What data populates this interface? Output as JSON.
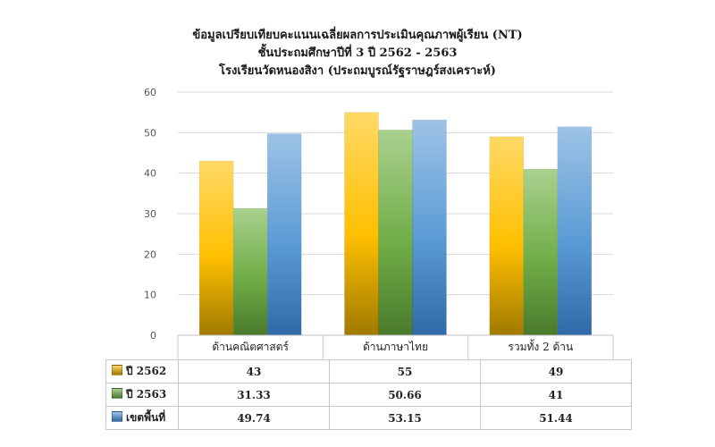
{
  "chart_data": {
    "type": "bar",
    "title": [
      "ข้อมูลเปรียบเทียบคะแนนเฉลี่ยผลการประเมินคุณภาพผู้เรียน (NT)",
      "ชั้นประถมศึกษาปีที่ 3 ปี 2562 - 2563",
      "โรงเรียนวัดหนองสิงา (ประถมบูรณ์รัฐราษฎร์สงเคราะห์)"
    ],
    "categories": [
      "ด้านคณิตศาสตร์",
      "ด้านภาษาไทย",
      "รวมทั้ง 2 ด้าน"
    ],
    "series": [
      {
        "name": "ปี 2562",
        "values": [
          43,
          55,
          49
        ],
        "display": [
          "43",
          "55",
          "49"
        ],
        "color": "#f2b800"
      },
      {
        "name": "ปี 2563",
        "values": [
          31.33,
          50.66,
          41
        ],
        "display": [
          "31.33",
          "50.66",
          "41"
        ],
        "color": "#6aa84f"
      },
      {
        "name": "เขตพื้นที่",
        "values": [
          49.74,
          53.15,
          51.44
        ],
        "display": [
          "49.74",
          "53.15",
          "51.44"
        ],
        "color": "#4a90d0"
      }
    ],
    "ylim": [
      0,
      60
    ],
    "yticks": [
      0,
      10,
      20,
      30,
      40,
      50,
      60
    ],
    "grid": true,
    "legend": "data-table"
  }
}
